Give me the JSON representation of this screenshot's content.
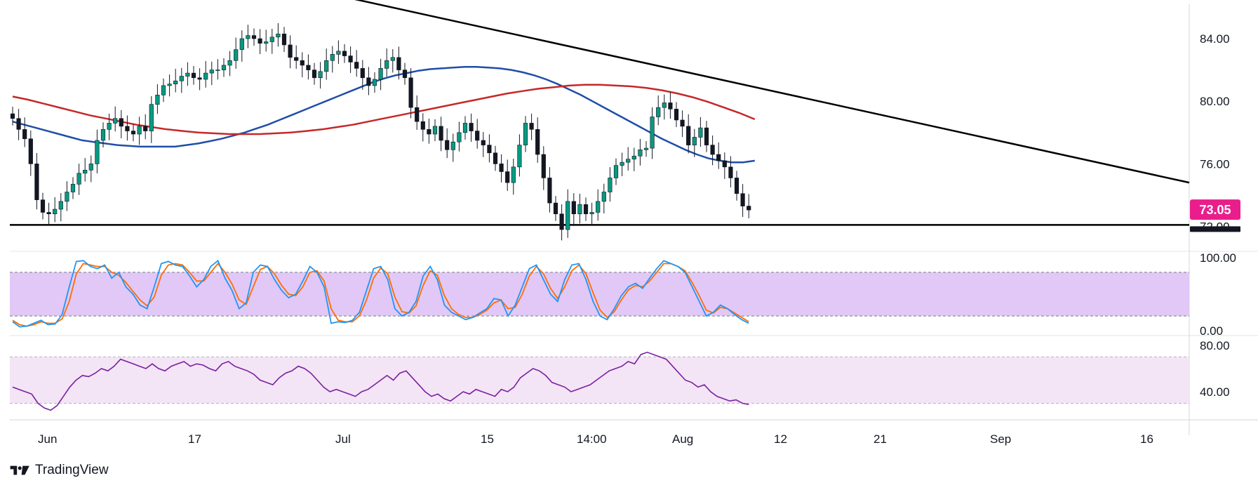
{
  "brand": {
    "name": "TradingView",
    "logo_icon": "tradingview-logo-icon"
  },
  "colors": {
    "candle_up": "#089981",
    "candle_down": "#131722",
    "ma_fast": "#1f4ea8",
    "ma_slow": "#c62828",
    "stoch_k": "#2196f3",
    "stoch_d": "#ff6d00",
    "rsi": "#7b1fa2",
    "band_stoch": "#e1c8f7",
    "band_rsi": "#f3e5f5",
    "price_tag": "#e91e8c",
    "trendline": "#000000"
  },
  "chart_data": {
    "type": "candlestick",
    "instrument_price_last": "73.05",
    "x_axis": {
      "tick_labels": [
        "Jun",
        "17",
        "Jul",
        "15",
        "14:00",
        "Aug",
        "12",
        "21",
        "Sep",
        "16"
      ]
    },
    "price_panel": {
      "y_tick_labels": [
        "84.00",
        "80.00",
        "76.00",
        "72.00"
      ],
      "ylim": [
        70.5,
        86.2
      ],
      "close_series": [
        78.9,
        78.2,
        77.6,
        76.0,
        73.7,
        72.9,
        72.8,
        73.1,
        73.6,
        74.2,
        74.7,
        75.4,
        75.6,
        76.0,
        77.5,
        78.2,
        78.6,
        78.9,
        78.4,
        78.1,
        77.9,
        78.4,
        78.1,
        79.8,
        80.4,
        81.0,
        81.1,
        81.3,
        81.6,
        81.8,
        81.5,
        81.4,
        81.8,
        82.0,
        82.0,
        82.3,
        82.6,
        83.3,
        84.0,
        84.2,
        84.0,
        83.7,
        83.8,
        84.1,
        84.3,
        83.6,
        82.8,
        82.6,
        82.3,
        82.0,
        81.5,
        81.9,
        82.6,
        83.0,
        83.2,
        82.9,
        82.5,
        82.1,
        81.5,
        81.0,
        81.4,
        82.1,
        82.6,
        82.8,
        82.0,
        81.5,
        79.6,
        78.7,
        78.2,
        77.9,
        78.4,
        77.5,
        76.9,
        77.4,
        78.0,
        78.6,
        78.1,
        77.5,
        77.2,
        76.7,
        76.0,
        75.5,
        74.8,
        75.8,
        77.2,
        78.6,
        78.2,
        76.6,
        75.1,
        73.5,
        72.8,
        71.8,
        73.6,
        72.8,
        73.4,
        72.8,
        72.9,
        73.6,
        74.2,
        75.1,
        75.9,
        76.1,
        76.3,
        76.5,
        76.9,
        77.0,
        79.0,
        79.6,
        79.9,
        79.5,
        78.8,
        78.4,
        77.2,
        77.7,
        78.3,
        77.2,
        76.6,
        76.2,
        75.8,
        75.1,
        74.1,
        73.3,
        73.05
      ],
      "overlays": [
        {
          "type": "moving-average",
          "values": [
            78.7,
            78.5,
            78.3,
            78.1,
            77.9,
            77.7,
            77.5,
            77.4,
            77.3,
            77.2,
            77.15,
            77.1,
            77.1,
            77.1,
            77.1,
            77.2,
            77.3,
            77.45,
            77.6,
            77.8,
            78.0,
            78.25,
            78.5,
            78.8,
            79.1,
            79.4,
            79.7,
            80.0,
            80.3,
            80.6,
            80.9,
            81.2,
            81.45,
            81.65,
            81.8,
            81.95,
            82.05,
            82.1,
            82.15,
            82.2,
            82.2,
            82.15,
            82.1,
            82.0,
            81.85,
            81.65,
            81.4,
            81.1,
            80.75,
            80.4,
            80.0,
            79.6,
            79.2,
            78.8,
            78.4,
            78.0,
            77.6,
            77.25,
            76.9,
            76.6,
            76.35,
            76.2,
            76.1,
            76.1,
            76.2
          ],
          "x_range": [
            0,
            123
          ]
        },
        {
          "type": "moving-average",
          "values": [
            80.3,
            80.1,
            79.85,
            79.6,
            79.35,
            79.1,
            78.9,
            78.7,
            78.5,
            78.35,
            78.2,
            78.1,
            78.0,
            77.95,
            77.9,
            77.9,
            77.9,
            77.95,
            78.0,
            78.1,
            78.2,
            78.35,
            78.5,
            78.7,
            78.9,
            79.1,
            79.3,
            79.5,
            79.7,
            79.9,
            80.1,
            80.3,
            80.5,
            80.65,
            80.8,
            80.9,
            81.0,
            81.05,
            81.05,
            81.0,
            80.95,
            80.85,
            80.7,
            80.5,
            80.25,
            79.95,
            79.6,
            79.25,
            78.85
          ],
          "x_range": [
            0,
            123
          ]
        },
        {
          "type": "trendline",
          "from": [
            0,
            89.4
          ],
          "to": [
            169,
            74.8
          ]
        },
        {
          "type": "horizontal-line",
          "value": 72.1
        }
      ]
    },
    "stochastic_panel": {
      "y_tick_labels": [
        "100.00",
        "0.00"
      ],
      "ylim": [
        -5,
        105
      ],
      "band": [
        20,
        80
      ],
      "k_series": [
        12,
        5,
        6,
        10,
        14,
        8,
        9,
        22,
        60,
        95,
        96,
        88,
        85,
        90,
        72,
        80,
        60,
        50,
        35,
        30,
        60,
        92,
        95,
        90,
        88,
        75,
        60,
        70,
        88,
        96,
        72,
        55,
        30,
        38,
        80,
        90,
        88,
        70,
        55,
        45,
        50,
        68,
        88,
        80,
        60,
        10,
        12,
        11,
        14,
        25,
        55,
        85,
        88,
        70,
        30,
        20,
        25,
        40,
        75,
        88,
        70,
        35,
        25,
        20,
        15,
        18,
        24,
        30,
        44,
        42,
        20,
        35,
        60,
        85,
        90,
        70,
        50,
        40,
        70,
        90,
        92,
        70,
        40,
        20,
        15,
        30,
        48,
        60,
        65,
        58,
        72,
        85,
        96,
        92,
        88,
        80,
        60,
        40,
        20,
        25,
        35,
        30,
        22,
        15,
        10
      ],
      "d_series": [
        14,
        8,
        6,
        8,
        12,
        10,
        10,
        16,
        40,
        78,
        92,
        90,
        88,
        88,
        80,
        76,
        66,
        54,
        42,
        34,
        46,
        76,
        90,
        92,
        90,
        80,
        68,
        68,
        80,
        92,
        80,
        64,
        42,
        36,
        60,
        84,
        88,
        78,
        62,
        50,
        48,
        60,
        80,
        82,
        68,
        30,
        14,
        12,
        12,
        20,
        42,
        72,
        86,
        78,
        46,
        26,
        24,
        34,
        62,
        82,
        76,
        48,
        30,
        22,
        18,
        18,
        22,
        28,
        38,
        42,
        30,
        32,
        50,
        75,
        88,
        78,
        58,
        44,
        60,
        82,
        90,
        78,
        52,
        28,
        18,
        26,
        42,
        56,
        62,
        60,
        68,
        80,
        92,
        92,
        88,
        82,
        66,
        48,
        28,
        24,
        32,
        30,
        24,
        18,
        12
      ]
    },
    "rsi_panel": {
      "y_tick_labels": [
        "80.00",
        "40.00"
      ],
      "ylim": [
        17,
        86
      ],
      "band": [
        30,
        70
      ],
      "series": [
        44,
        42,
        40,
        38,
        30,
        26,
        24,
        28,
        36,
        44,
        50,
        54,
        53,
        56,
        60,
        58,
        62,
        68,
        66,
        64,
        62,
        60,
        64,
        60,
        58,
        62,
        64,
        66,
        62,
        64,
        63,
        60,
        58,
        64,
        66,
        62,
        60,
        58,
        55,
        50,
        48,
        46,
        52,
        56,
        58,
        62,
        60,
        56,
        50,
        44,
        40,
        42,
        40,
        38,
        36,
        40,
        42,
        46,
        50,
        54,
        50,
        56,
        58,
        52,
        46,
        40,
        36,
        38,
        34,
        32,
        36,
        40,
        38,
        42,
        40,
        38,
        36,
        42,
        40,
        44,
        52,
        56,
        60,
        58,
        54,
        48,
        46,
        44,
        40,
        42,
        44,
        46,
        50,
        54,
        58,
        60,
        62,
        66,
        64,
        72,
        74,
        72,
        70,
        68,
        62,
        56,
        50,
        48,
        44,
        46,
        40,
        36,
        34,
        32,
        33,
        30,
        29
      ]
    }
  }
}
